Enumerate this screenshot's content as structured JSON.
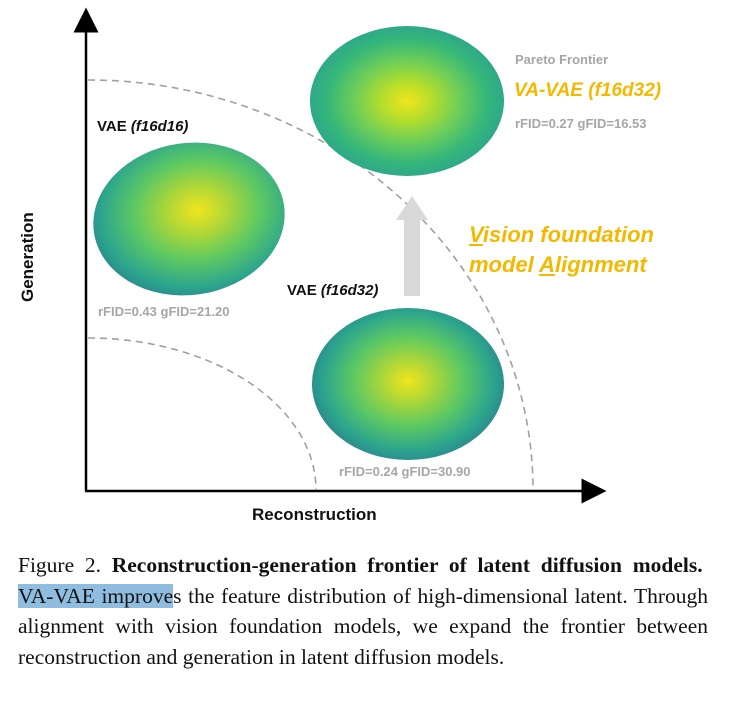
{
  "figure": {
    "y_axis_label": "Generation",
    "x_axis_label": "Reconstruction",
    "clusters": [
      {
        "title": "VAE ",
        "title_italic": "(f16d16)",
        "metric": "rFID=0.43  gFID=21.20"
      },
      {
        "title": "VAE ",
        "title_italic": "(f16d32)",
        "metric": "rFID=0.24  gFID=30.90"
      },
      {
        "pareto_label": "Pareto Frontier",
        "title": "VA-VAE (f16d32)",
        "metric": "rFID=0.27  gFID=16.53"
      }
    ],
    "annotation": {
      "line1_first": "V",
      "line1_rest": "ision foundation",
      "line2_first": "model ",
      "line2_u": "A",
      "line2_rest": "lignment"
    },
    "colors": {
      "accent_yellow": "#f5b800",
      "metric_gray": "#a6a6a6",
      "arrow_gray": "#d9d9d9",
      "cluster_purple": "#3b3f8f",
      "cluster_teal": "#2ca58d",
      "cluster_yellow": "#f1e51d"
    }
  },
  "caption": {
    "prefix": "Figure 2.  ",
    "bold": "Reconstruction-generation frontier of latent diffusion models.",
    "highlight": "VA-VAE improve",
    "rest": "s the feature distribution of high-dimensional latent.  Through alignment with vision foundation models, we expand the frontier between reconstruction and generation in latent diffusion models."
  }
}
